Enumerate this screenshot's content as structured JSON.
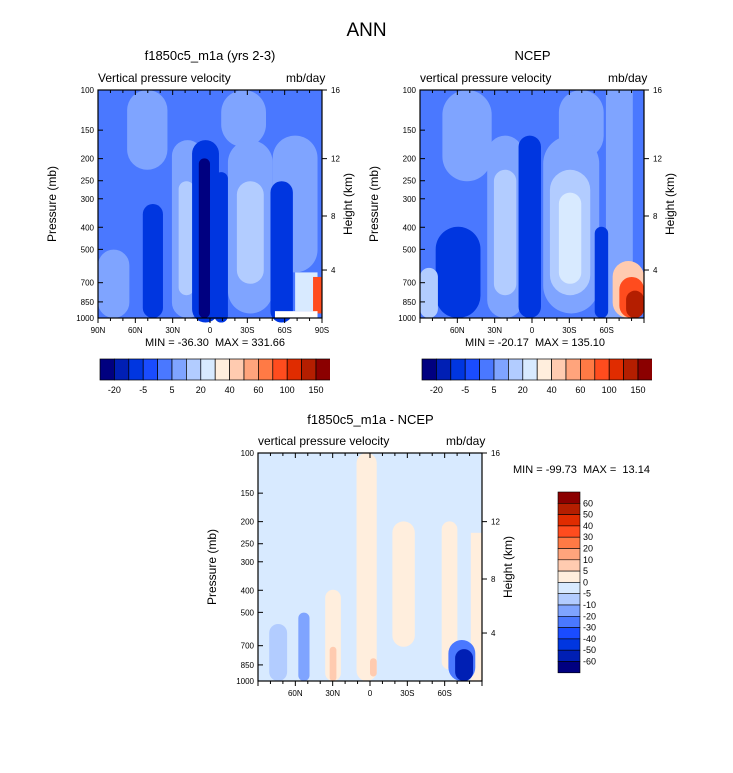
{
  "figure_title": "ANN",
  "colors_16": [
    "#000080",
    "#001fb4",
    "#0036e0",
    "#1a4cff",
    "#4a78ff",
    "#7fa4ff",
    "#b2ccff",
    "#d8eaff",
    "#ffeedd",
    "#ffcbb0",
    "#ffa47c",
    "#ff7a45",
    "#ff4c1e",
    "#e02c00",
    "#b41e00",
    "#8b0000"
  ],
  "chart_data": [
    {
      "type": "heatmap",
      "title": "f1850c5_m1a (yrs 2-3)",
      "left_subtitle": "Vertical pressure velocity",
      "right_subtitle": "mb/day",
      "ylabel": "Pressure (mb)",
      "ylabel_right": "Height (km)",
      "yticks": [
        "100",
        "150",
        "200",
        "250",
        "300",
        "400",
        "500",
        "700",
        "850",
        "1000"
      ],
      "yticks_right": [
        "16",
        "12",
        "8",
        "4"
      ],
      "xticks": [
        "90N",
        "60N",
        "30N",
        "0",
        "30S",
        "60S",
        "90S"
      ],
      "xlim": [
        90,
        -90
      ],
      "ylim": [
        1000,
        100
      ],
      "min_max": "MIN = -36.30  MAX = 331.66",
      "colorbar_labels": [
        "-20",
        "-5",
        "5",
        "20",
        "40",
        "60",
        "100",
        "150"
      ]
    },
    {
      "type": "heatmap",
      "title": "NCEP",
      "left_subtitle": "vertical pressure velocity",
      "right_subtitle": "mb/day",
      "ylabel": "Pressure (mb)",
      "ylabel_right": "Height (km)",
      "yticks": [
        "100",
        "150",
        "200",
        "250",
        "300",
        "400",
        "500",
        "700",
        "850",
        "1000"
      ],
      "yticks_right": [
        "16",
        "12",
        "8",
        "4"
      ],
      "xticks": [
        "60N",
        "30N",
        "0",
        "30S",
        "60S"
      ],
      "xlim": [
        90,
        -90
      ],
      "ylim": [
        1000,
        100
      ],
      "min_max": "MIN = -20.17  MAX = 135.10",
      "colorbar_labels": [
        "-20",
        "-5",
        "5",
        "20",
        "40",
        "60",
        "100",
        "150"
      ]
    },
    {
      "type": "heatmap",
      "title": "f1850c5_m1a - NCEP",
      "left_subtitle": "vertical pressure velocity",
      "right_subtitle": "mb/day",
      "ylabel": "Pressure (mb)",
      "ylabel_right": "Height (km)",
      "yticks": [
        "100",
        "150",
        "200",
        "250",
        "300",
        "400",
        "500",
        "700",
        "850",
        "1000"
      ],
      "yticks_right": [
        "16",
        "12",
        "8",
        "4"
      ],
      "xticks": [
        "60N",
        "30N",
        "0",
        "30S",
        "60S"
      ],
      "xlim": [
        90,
        -90
      ],
      "ylim": [
        1000,
        100
      ],
      "min_max": "MIN = -99.73  MAX =  13.14",
      "colorbar_labels": [
        "60",
        "50",
        "40",
        "30",
        "20",
        "10",
        "5",
        "0",
        "-5",
        "-10",
        "-20",
        "-30",
        "-40",
        "-50",
        "-60"
      ]
    }
  ]
}
